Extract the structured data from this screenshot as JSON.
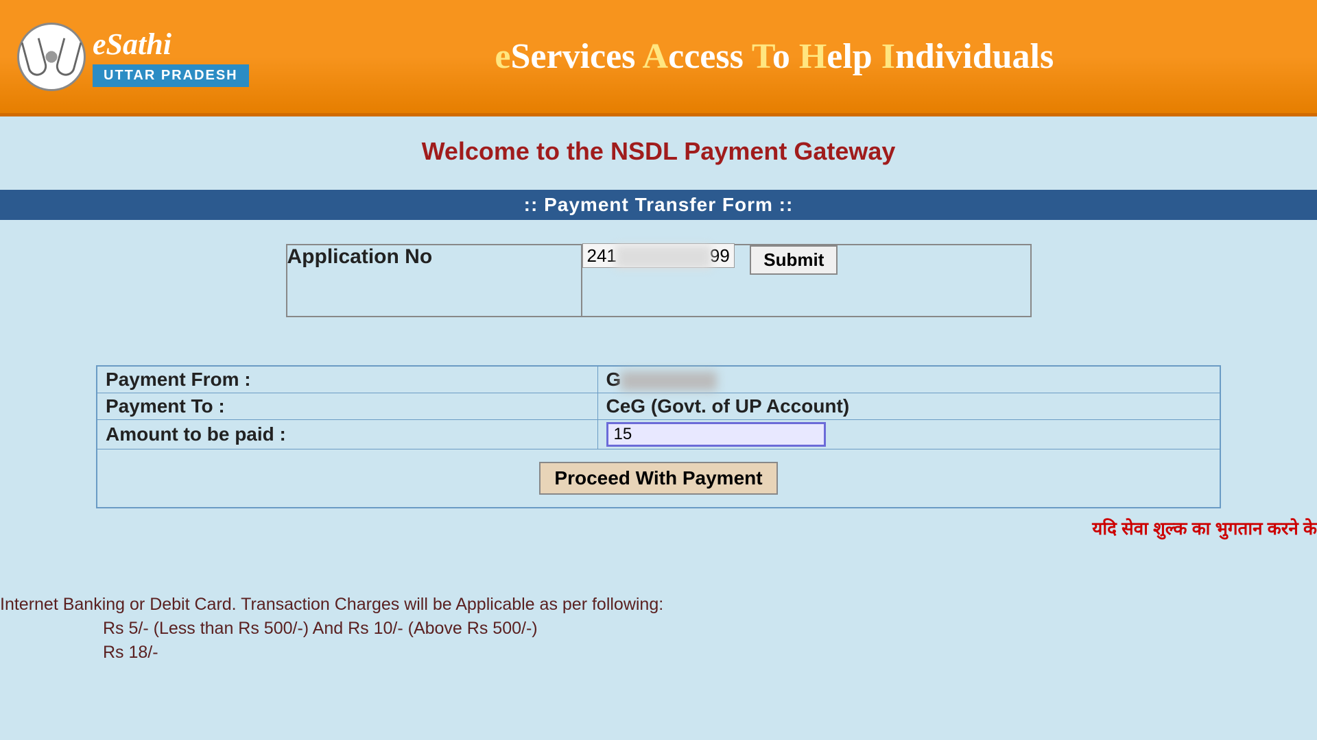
{
  "header": {
    "logo_title": "eSathi",
    "logo_subtitle": "UTTAR PRADESH",
    "tagline_parts": [
      "e",
      "S",
      "ervices ",
      "A",
      "ccess ",
      "T",
      "o ",
      "H",
      "elp ",
      "I",
      "ndividuals"
    ]
  },
  "welcome_text": "Welcome to the NSDL Payment Gateway",
  "form_title": "::  Payment Transfer Form  ::",
  "app_no_label": "Application No",
  "app_no_value_prefix": "241",
  "app_no_value_suffix": "99",
  "submit_label": "Submit",
  "payment_from_label": "Payment From :",
  "payment_from_value": "G",
  "payment_to_label": "Payment To :",
  "payment_to_value": "CeG (Govt. of UP Account)",
  "amount_label": "Amount to be paid :",
  "amount_value": "15",
  "proceed_label": "Proceed With Payment",
  "hindi_note": "यदि सेवा शुल्क का भुगतान करने के ",
  "charges": {
    "line1": "Internet Banking or Debit Card. Transaction Charges will be Applicable as per following:",
    "line2": "Rs 5/-  (Less than Rs 500/-) And Rs 10/-  (Above Rs 500/-)",
    "line3": "Rs 18/-"
  },
  "colors": {
    "header_bg": "#f7941d",
    "accent_yellow": "#ffe680",
    "page_bg": "#cce5f0",
    "title_red": "#a01c1c",
    "bar_blue": "#2c5a8f",
    "border_blue": "#6a9bc4",
    "amount_border": "#6b6bd8",
    "proceed_bg": "#e8d4b8",
    "hindi_red": "#c00",
    "charges_text": "#5a2020"
  }
}
